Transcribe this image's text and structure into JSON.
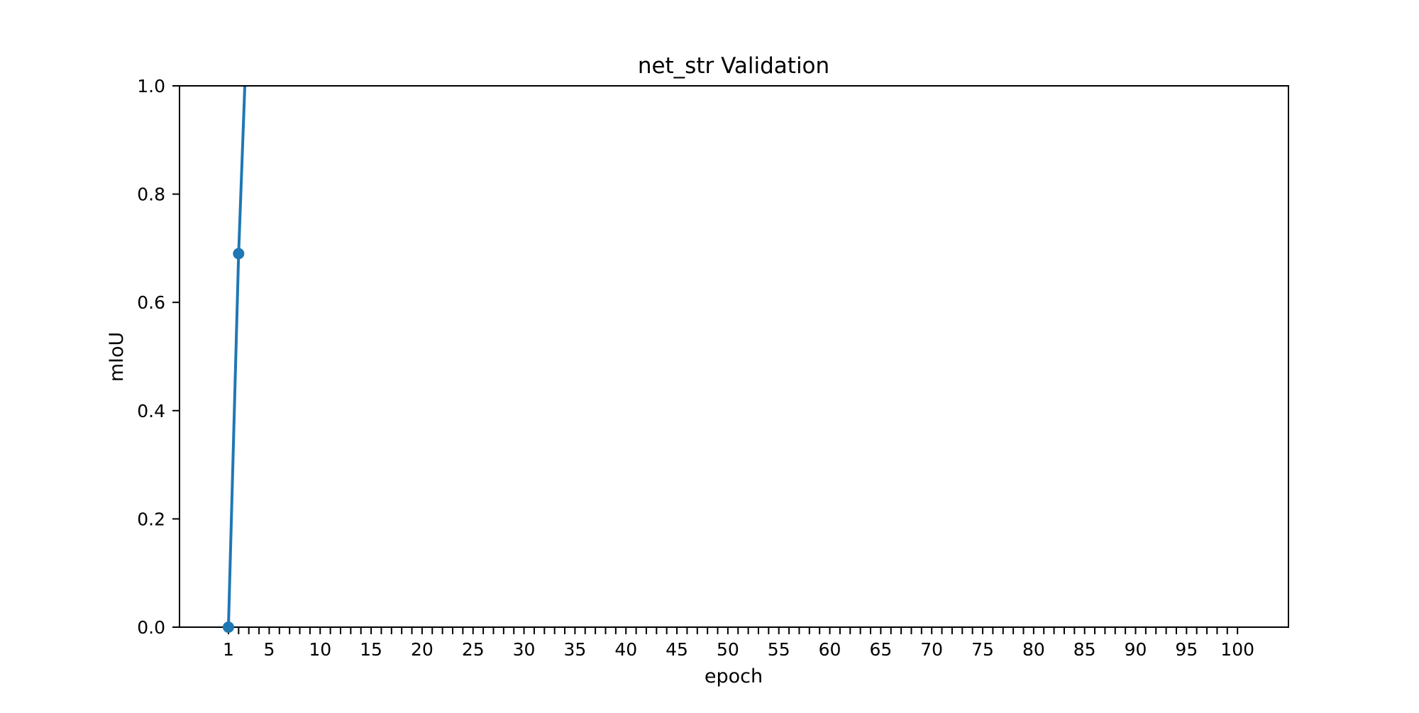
{
  "chart_data": {
    "type": "line",
    "title": "net_str Validation",
    "xlabel": "epoch",
    "ylabel": "mIoU",
    "x": [
      1,
      2,
      3
    ],
    "series": [
      {
        "values": [
          0.0,
          0.69,
          1.2
        ],
        "color": "#1f77b4"
      }
    ],
    "markers_shown_for": [
      1,
      2
    ],
    "xlim": [
      -3.8,
      105
    ],
    "ylim": [
      0,
      1
    ],
    "x_ticks": [
      1,
      2,
      3,
      4,
      5,
      6,
      7,
      8,
      9,
      10,
      11,
      12,
      13,
      14,
      15,
      16,
      17,
      18,
      19,
      20,
      21,
      22,
      23,
      24,
      25,
      26,
      27,
      28,
      29,
      30,
      31,
      32,
      33,
      34,
      35,
      36,
      37,
      38,
      39,
      40,
      41,
      42,
      43,
      44,
      45,
      46,
      47,
      48,
      49,
      50,
      51,
      52,
      53,
      54,
      55,
      56,
      57,
      58,
      59,
      60,
      61,
      62,
      63,
      64,
      65,
      66,
      67,
      68,
      69,
      70,
      71,
      72,
      73,
      74,
      75,
      76,
      77,
      78,
      79,
      80,
      81,
      82,
      83,
      84,
      85,
      86,
      87,
      88,
      89,
      90,
      91,
      92,
      93,
      94,
      95,
      96,
      97,
      98,
      99,
      100
    ],
    "x_tick_labels": [
      "1",
      "",
      "",
      "",
      "5",
      "",
      "",
      "",
      "",
      "10",
      "",
      "",
      "",
      "",
      "15",
      "",
      "",
      "",
      "",
      "20",
      "",
      "",
      "",
      "",
      "25",
      "",
      "",
      "",
      "",
      "30",
      "",
      "",
      "",
      "",
      "35",
      "",
      "",
      "",
      "",
      "40",
      "",
      "",
      "",
      "",
      "45",
      "",
      "",
      "",
      "",
      "50",
      "",
      "",
      "",
      "",
      "55",
      "",
      "",
      "",
      "",
      "60",
      "",
      "",
      "",
      "",
      "65",
      "",
      "",
      "",
      "",
      "70",
      "",
      "",
      "",
      "",
      "75",
      "",
      "",
      "",
      "",
      "80",
      "",
      "",
      "",
      "",
      "85",
      "",
      "",
      "",
      "",
      "90",
      "",
      "",
      "",
      "",
      "95",
      "",
      "",
      "",
      "",
      "100"
    ],
    "y_ticks": [
      0.0,
      0.2,
      0.4,
      0.6,
      0.8,
      1.0
    ],
    "y_tick_labels": [
      "0.0",
      "0.2",
      "0.4",
      "0.6",
      "0.8",
      "1.0"
    ],
    "grid": false,
    "legend": "none"
  }
}
